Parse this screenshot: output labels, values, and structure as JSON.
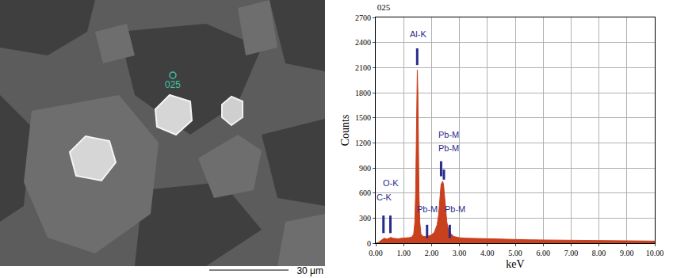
{
  "chart_data": {
    "type": "area",
    "title": "025",
    "x_label": "keV",
    "y_label": "Counts",
    "color": "#c8401e",
    "x": [
      0.0,
      0.1,
      0.2,
      0.25,
      0.3,
      0.35,
      0.4,
      0.45,
      0.5,
      0.55,
      0.6,
      0.7,
      0.8,
      0.9,
      1.0,
      1.1,
      1.2,
      1.3,
      1.36,
      1.4,
      1.43,
      1.45,
      1.47,
      1.49,
      1.51,
      1.53,
      1.55,
      1.58,
      1.62,
      1.7,
      1.8,
      1.85,
      1.9,
      2.0,
      2.1,
      2.2,
      2.25,
      2.28,
      2.31,
      2.34,
      2.37,
      2.4,
      2.43,
      2.46,
      2.5,
      2.55,
      2.6,
      2.65,
      2.7,
      2.8,
      2.9,
      3.0,
      3.2,
      3.4,
      3.6,
      3.8,
      4.0,
      4.25,
      4.5,
      4.75,
      5.0,
      5.5,
      6.0,
      6.5,
      7.0,
      7.5,
      8.0,
      8.5,
      9.0,
      9.5,
      10.0
    ],
    "values": [
      0,
      10,
      35,
      50,
      60,
      55,
      48,
      55,
      65,
      70,
      60,
      55,
      52,
      58,
      60,
      62,
      66,
      75,
      110,
      250,
      600,
      1100,
      1750,
      2070,
      1800,
      1150,
      600,
      250,
      110,
      80,
      78,
      95,
      85,
      100,
      130,
      220,
      330,
      450,
      600,
      700,
      720,
      740,
      700,
      580,
      400,
      250,
      170,
      140,
      110,
      80,
      70,
      65,
      60,
      58,
      55,
      52,
      50,
      48,
      45,
      43,
      42,
      40,
      38,
      36,
      35,
      33,
      32,
      30,
      28,
      27,
      25
    ],
    "xlim": [
      0,
      10
    ],
    "ylim": [
      0,
      2700
    ],
    "xticks": [
      {
        "value": 0,
        "label": "0.00"
      },
      {
        "value": 1,
        "label": "1.00"
      },
      {
        "value": 2,
        "label": "2.00"
      },
      {
        "value": 3,
        "label": "3.00"
      },
      {
        "value": 4,
        "label": "4.00"
      },
      {
        "value": 5,
        "label": "5.00"
      },
      {
        "value": 6,
        "label": "6.00"
      },
      {
        "value": 7,
        "label": "7.00"
      },
      {
        "value": 8,
        "label": "8.00"
      },
      {
        "value": 9,
        "label": "9.00"
      },
      {
        "value": 10,
        "label": "10.00"
      }
    ],
    "yticks": [
      0,
      300,
      600,
      900,
      1200,
      1500,
      1800,
      2100,
      2400,
      2700
    ],
    "grid": true,
    "peak_markers": [
      {
        "label": "C-K",
        "energy": 0.277,
        "bar": [
          120,
          330
        ],
        "label_x": 0.3,
        "label_y": 470
      },
      {
        "label": "O-K",
        "energy": 0.525,
        "bar": [
          120,
          330
        ],
        "label_x": 0.55,
        "label_y": 640
      },
      {
        "label": "Al-K",
        "energy": 1.486,
        "bar": [
          2130,
          2330
        ],
        "label_x": 1.52,
        "label_y": 2430
      },
      {
        "label": "Pb-M",
        "energy": 1.84,
        "bar": [
          60,
          220
        ],
        "label_x": 1.84,
        "label_y": 330
      },
      {
        "label": "Pb-M",
        "energy": 2.342,
        "bar": [
          800,
          980
        ],
        "label_x": 2.62,
        "label_y": 1220
      },
      {
        "label": "Pb-M",
        "energy": 2.443,
        "bar": [
          760,
          880
        ],
        "label_x": 2.62,
        "label_y": 1060
      },
      {
        "label": "Pb-M",
        "energy": 2.653,
        "bar": [
          60,
          220
        ],
        "label_x": 2.85,
        "label_y": 330
      }
    ]
  },
  "micrograph": {
    "spot_label": "025",
    "scale_bar_label": "30 μm"
  }
}
